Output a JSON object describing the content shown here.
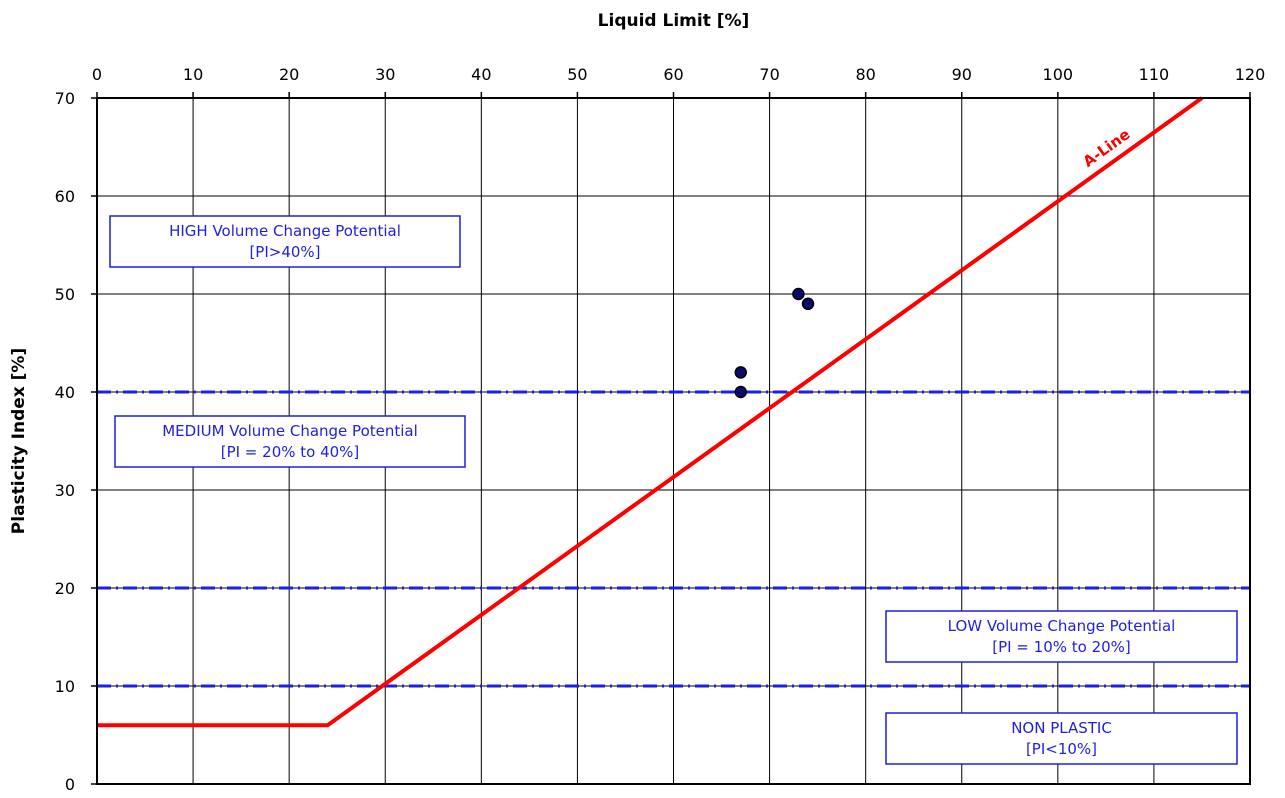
{
  "chart_data": {
    "type": "scatter",
    "xlabel": "Liquid Limit [%]",
    "ylabel": "Plasticity Index [%]",
    "xlim": [
      0,
      120
    ],
    "ylim": [
      0,
      70
    ],
    "x_ticks": [
      0,
      10,
      20,
      30,
      40,
      50,
      60,
      70,
      80,
      90,
      100,
      110,
      120
    ],
    "y_ticks": [
      0,
      10,
      20,
      30,
      40,
      50,
      60,
      70
    ],
    "x_axis_position": "top",
    "grid": true,
    "points": [
      {
        "x": 67,
        "y": 42
      },
      {
        "x": 67,
        "y": 40
      },
      {
        "x": 73,
        "y": 50
      },
      {
        "x": 74,
        "y": 49
      }
    ],
    "a_line": {
      "label": "A-Line",
      "color": "#ff0000",
      "points": [
        [
          0,
          6
        ],
        [
          24,
          6
        ],
        [
          115,
          70
        ]
      ]
    },
    "threshold_lines": {
      "color": "#1f1fe0",
      "values": [
        10,
        20,
        40
      ]
    },
    "zones": [
      {
        "line1": "HIGH Volume Change Potential",
        "line2": "[PI>40%]"
      },
      {
        "line1": "MEDIUM Volume Change Potential",
        "line2": "[PI = 20% to 40%]"
      },
      {
        "line1": "LOW Volume Change Potential",
        "line2": "[PI = 10% to 20%]"
      },
      {
        "line1": "NON PLASTIC",
        "line2": "[PI<10%]"
      }
    ],
    "point_color": "#0b0b6e",
    "point_edge_color": "#000000",
    "zone_text_color": "#1f1fe0"
  }
}
